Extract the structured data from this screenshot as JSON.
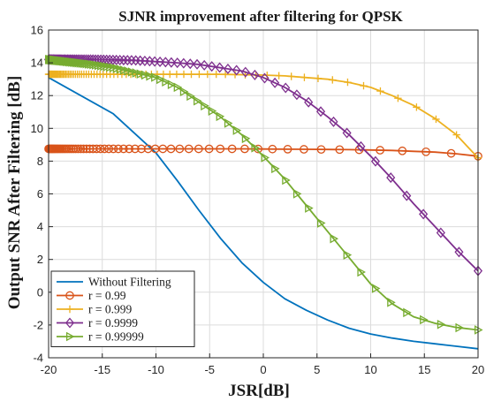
{
  "chart_data": {
    "type": "line",
    "title": "SJNR improvement after filtering for QPSK",
    "xlabel": "JSR[dB]",
    "ylabel": "Output SNR After Filtering [dB]",
    "xlim": [
      -20,
      20
    ],
    "ylim": [
      -4,
      16
    ],
    "xticks": [
      -20,
      -15,
      -10,
      -5,
      0,
      5,
      10,
      15,
      20
    ],
    "yticks": [
      -4,
      -2,
      0,
      2,
      4,
      6,
      8,
      10,
      12,
      14,
      16
    ],
    "grid": true,
    "legend_position": "bottom-left",
    "series": [
      {
        "name": "Without Filtering",
        "color": "#0072BD",
        "marker": "none",
        "x": [
          -20,
          -14,
          -10,
          -8,
          -6,
          -4,
          -2,
          0,
          2,
          4,
          6,
          8,
          10,
          12,
          14,
          16,
          18,
          20
        ],
        "y": [
          13.1,
          10.9,
          8.5,
          6.8,
          5.0,
          3.3,
          1.8,
          0.6,
          -0.4,
          -1.1,
          -1.7,
          -2.2,
          -2.55,
          -2.8,
          -3.0,
          -3.15,
          -3.3,
          -3.45
        ]
      },
      {
        "name": "r = 0.99",
        "color": "#D95319",
        "marker": "circle",
        "x": [
          -20,
          -16,
          -12,
          -10,
          -8,
          -6,
          -4,
          -2,
          0,
          2,
          4,
          6,
          8,
          10,
          12,
          14,
          16,
          18,
          20
        ],
        "y": [
          8.75,
          8.75,
          8.75,
          8.75,
          8.75,
          8.75,
          8.75,
          8.75,
          8.74,
          8.73,
          8.72,
          8.71,
          8.7,
          8.68,
          8.65,
          8.6,
          8.55,
          8.45,
          8.3
        ]
      },
      {
        "name": "r = 0.999",
        "color": "#EDB120",
        "marker": "plus",
        "x": [
          -20,
          -16,
          -12,
          -8,
          -4,
          0,
          2,
          4,
          6,
          8,
          10,
          12,
          14,
          16,
          18,
          20
        ],
        "y": [
          13.3,
          13.3,
          13.3,
          13.3,
          13.3,
          13.25,
          13.2,
          13.1,
          13.0,
          12.8,
          12.5,
          12.0,
          11.4,
          10.6,
          9.6,
          8.2
        ]
      },
      {
        "name": "r = 0.9999",
        "color": "#7E2F8E",
        "marker": "diamond",
        "x": [
          -20,
          -16,
          -12,
          -8,
          -6,
          -4,
          -2,
          0,
          2,
          4,
          6,
          8,
          10,
          12,
          14,
          16,
          18,
          20
        ],
        "y": [
          14.2,
          14.2,
          14.15,
          14.0,
          13.9,
          13.7,
          13.5,
          13.1,
          12.5,
          11.7,
          10.7,
          9.6,
          8.3,
          6.9,
          5.4,
          4.0,
          2.6,
          1.3
        ]
      },
      {
        "name": "r = 0.99999",
        "color": "#77AC30",
        "marker": "triangle-right",
        "x": [
          -20,
          -16,
          -14,
          -12,
          -10,
          -8,
          -6,
          -4,
          -2,
          0,
          2,
          4,
          6,
          8,
          10,
          12,
          14,
          16,
          18,
          20
        ],
        "y": [
          14.2,
          13.9,
          13.7,
          13.4,
          13.1,
          12.5,
          11.6,
          10.7,
          9.6,
          8.3,
          6.9,
          5.3,
          3.7,
          2.1,
          0.5,
          -0.7,
          -1.5,
          -1.9,
          -2.15,
          -2.3
        ]
      }
    ]
  }
}
